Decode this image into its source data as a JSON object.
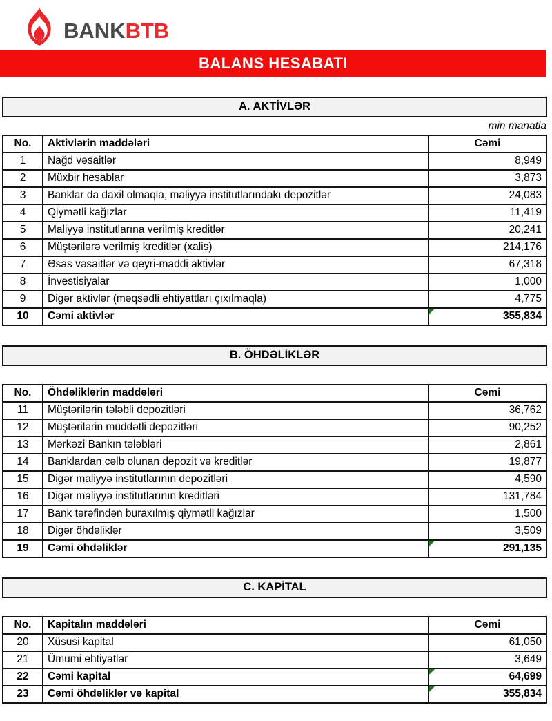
{
  "logo": {
    "bank_text": "BANK",
    "btb_text": "BTB",
    "icon": "flame-icon"
  },
  "banner": {
    "title": "BALANS HESABATI"
  },
  "colors": {
    "banner_red": "#f20d0d",
    "logo_red": "#ed2a2e",
    "logo_gray": "#4a4a4c",
    "bar_bg": "#f2f2f2",
    "marker_green": "#1f7a1f",
    "border_black": "#141414"
  },
  "sections": [
    {
      "id": "aktivler",
      "title": "A. AKTİVLƏR",
      "note": "min manatla",
      "headers": {
        "no": "No.",
        "item": "Aktivlərin maddələri",
        "total": "Cəmi"
      },
      "rows": [
        {
          "no": "1",
          "item": "Nağd vəsaitlər",
          "value": "8,949",
          "bold": false,
          "marker": false
        },
        {
          "no": "2",
          "item": "Müxbir hesablar",
          "value": "3,873",
          "bold": false,
          "marker": false
        },
        {
          "no": "3",
          "item": "Banklar da daxil olmaqla, maliyyə institutlarındakı depozitlər",
          "value": "24,083",
          "bold": false,
          "marker": false
        },
        {
          "no": "4",
          "item": "Qiymətli kağızlar",
          "value": "11,419",
          "bold": false,
          "marker": false
        },
        {
          "no": "5",
          "item": "Maliyyə institutlarına verilmiş kreditlər",
          "value": "20,241",
          "bold": false,
          "marker": false
        },
        {
          "no": "6",
          "item": "Müştərilərə verilmiş kreditlər (xalis)",
          "value": "214,176",
          "bold": false,
          "marker": false
        },
        {
          "no": "7",
          "item": "Əsas vəsaitlər və qeyri-maddi aktivlər",
          "value": "67,318",
          "bold": false,
          "marker": false
        },
        {
          "no": "8",
          "item": "İnvestisiyalar",
          "value": "1,000",
          "bold": false,
          "marker": false
        },
        {
          "no": "9",
          "item": "Digər aktivlər (məqsədli ehtiyattları çıxılmaqla)",
          "value": "4,775",
          "bold": false,
          "marker": false
        },
        {
          "no": "10",
          "item": "Cəmi aktivlər",
          "value": "355,834",
          "bold": true,
          "marker": true
        }
      ]
    },
    {
      "id": "ohdelikler",
      "title": "B. ÖHDƏLİKLƏR",
      "note": null,
      "headers": {
        "no": "No.",
        "item": "Öhdəliklərin maddələri",
        "total": "Cəmi"
      },
      "rows": [
        {
          "no": "11",
          "item": "Müştərilərin tələbli depozitləri",
          "value": "36,762",
          "bold": false,
          "marker": false
        },
        {
          "no": "12",
          "item": "Müştərilərin müddətli depozitləri",
          "value": "90,252",
          "bold": false,
          "marker": false
        },
        {
          "no": "13",
          "item": "Mərkəzi Bankın tələbləri",
          "value": "2,861",
          "bold": false,
          "marker": false
        },
        {
          "no": "14",
          "item": "Banklardan cəlb olunan depozit və kreditlər",
          "value": "19,877",
          "bold": false,
          "marker": false
        },
        {
          "no": "15",
          "item": "Digər maliyyə institutlarının depozitləri",
          "value": "4,590",
          "bold": false,
          "marker": false
        },
        {
          "no": "16",
          "item": "Digər maliyyə institutlarının kreditləri",
          "value": "131,784",
          "bold": false,
          "marker": false
        },
        {
          "no": "17",
          "item": "Bank tərəfindən buraxılmış qiymətli kağızlar",
          "value": "1,500",
          "bold": false,
          "marker": false
        },
        {
          "no": "18",
          "item": "Digər öhdəliklər",
          "value": "3,509",
          "bold": false,
          "marker": false
        },
        {
          "no": "19",
          "item": "Cəmi öhdəliklər",
          "value": "291,135",
          "bold": true,
          "marker": true
        }
      ]
    },
    {
      "id": "kapital",
      "title": "C. KAPİTAL",
      "note": null,
      "headers": {
        "no": "No.",
        "item": "Kapitalın maddələri",
        "total": "Cəmi"
      },
      "rows": [
        {
          "no": "20",
          "item": "Xüsusi kapital",
          "value": "61,050",
          "bold": false,
          "marker": false
        },
        {
          "no": "21",
          "item": "Ümumi ehtiyatlar",
          "value": "3,649",
          "bold": false,
          "marker": false
        },
        {
          "no": "22",
          "item": "Cəmi kapital",
          "value": "64,699",
          "bold": true,
          "marker": true
        },
        {
          "no": "23",
          "item": "Cəmi öhdəliklər və kapital",
          "value": "355,834",
          "bold": true,
          "marker": true
        }
      ]
    }
  ]
}
